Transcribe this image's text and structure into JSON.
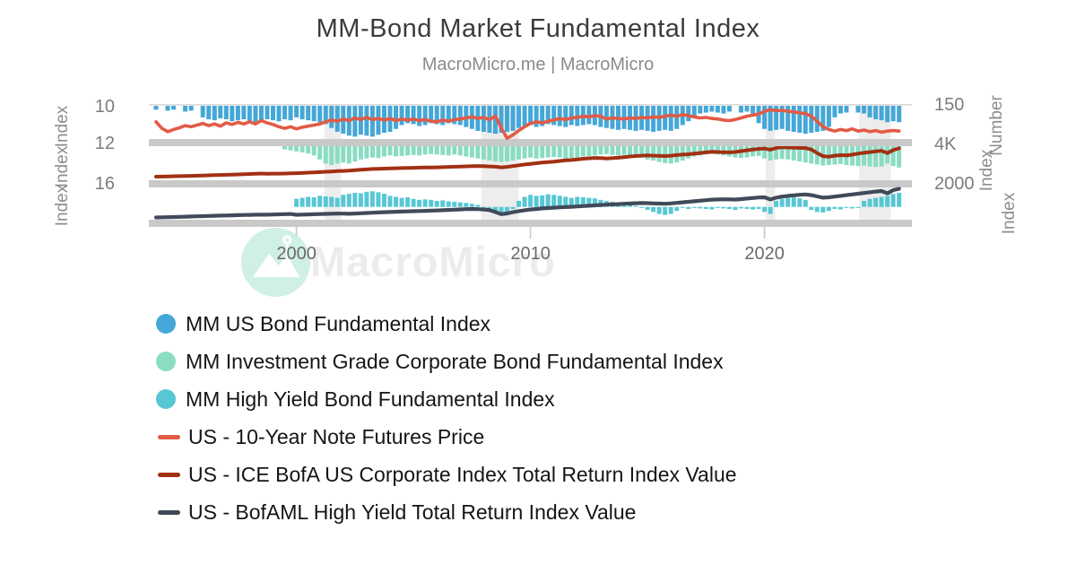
{
  "header": {
    "title": "MM-Bond Market Fundamental Index",
    "subtitle": "MacroMicro.me | MacroMicro"
  },
  "watermark": {
    "text": "MacroMicro",
    "logo": "macromicro-mountain-flag-logo"
  },
  "colors": {
    "bar_blue": "#45a7d8",
    "bar_teal": "#8adcc3",
    "bar_cyan": "#58c7d4",
    "line_red": "#e25b45",
    "line_dark_red": "#a23012",
    "line_navy": "#404a59",
    "grid_band": "#c9c9c9",
    "grid_top_line": "#d9d9d9",
    "recession_shade": "#ededed",
    "tick_text": "#7c7c7c",
    "axis_title_text": "#8d8d8d",
    "x_label_text": "#6b6b6b",
    "watermark_circle": "#ccefe4"
  },
  "legend": {
    "items": [
      {
        "marker": "circle",
        "color": "#45a7d8",
        "label": "MM US Bond Fundamental Index"
      },
      {
        "marker": "circle",
        "color": "#8adcc3",
        "label": "MM Investment Grade Corporate Bond Fundamental Index"
      },
      {
        "marker": "circle",
        "color": "#58c7d4",
        "label": "MM High Yield Bond Fundamental Index"
      },
      {
        "marker": "line",
        "color": "#e25b45",
        "label": "US - 10-Year Note Futures Price"
      },
      {
        "marker": "line",
        "color": "#a23012",
        "label": "US - ICE BofA US Corporate Index Total Return Index Value"
      },
      {
        "marker": "line",
        "color": "#404a59",
        "label": "US - BofAML High Yield Total Return Index Value"
      }
    ]
  },
  "chart_data": {
    "type": "mixed-bar-line",
    "title": "MM-Bond Market Fundamental Index",
    "x_start": 1994.0,
    "x_step": 0.25,
    "x_axis": {
      "range": [
        1994,
        2026.3
      ],
      "ticks": [
        2000,
        2010,
        2020
      ],
      "tick_labels": [
        "2000",
        "2010",
        "2020"
      ]
    },
    "recession_bands": [
      [
        2001.2,
        2001.9
      ],
      [
        2007.9,
        2009.5
      ],
      [
        2020.05,
        2020.45
      ],
      [
        2024.05,
        2025.4
      ]
    ],
    "panels": [
      {
        "name": "us-bond-panel",
        "left_axis_title": "Index",
        "right_axis_title": "Number",
        "left_tick_label": "10",
        "right_tick_label": "150",
        "left_range": [
          10,
          11.77
        ],
        "right_range": [
          150,
          88
        ],
        "bar_series": {
          "name": "MM US Bond Fundamental Index",
          "color": "#45a7d8",
          "baseline": 10,
          "values": [
            10.2,
            null,
            10.25,
            10.2,
            null,
            10.3,
            10.25,
            null,
            10.6,
            10.7,
            10.75,
            10.65,
            10.7,
            10.8,
            10.75,
            10.7,
            10.8,
            10.85,
            10.75,
            10.7,
            10.75,
            10.8,
            10.7,
            10.75,
            10.6,
            10.7,
            10.75,
            10.8,
            10.85,
            10.95,
            11.15,
            11.35,
            11.45,
            11.55,
            11.6,
            11.5,
            11.55,
            11.6,
            11.5,
            11.4,
            11.35,
            11.2,
            11.0,
            10.9,
            10.95,
            11.05,
            11.0,
            10.9,
            10.95,
            11.0,
            10.9,
            10.95,
            11.0,
            11.1,
            11.2,
            11.3,
            11.35,
            11.4,
            11.45,
            11.4,
            11.35,
            11.3,
            11.15,
            11.05,
            11.0,
            11.1,
            11.05,
            10.95,
            11.0,
            11.05,
            11.1,
            11.0,
            11.05,
            11.0,
            10.95,
            11.0,
            11.1,
            11.15,
            11.2,
            11.25,
            11.2,
            11.25,
            11.3,
            11.25,
            11.3,
            11.35,
            11.3,
            11.25,
            11.3,
            11.2,
            11.0,
            10.8,
            10.5,
            10.4,
            10.35,
            10.3,
            10.35,
            10.4,
            10.3,
            null,
            10.35,
            10.3,
            10.4,
            10.9,
            11.2,
            11.3,
            11.25,
            11.2,
            11.3,
            11.35,
            11.4,
            11.45,
            11.4,
            11.35,
            11.3,
            11.1,
            10.6,
            10.4,
            10.35,
            null,
            10.35,
            10.4,
            10.6,
            10.7,
            10.75,
            10.85,
            10.8,
            10.85
          ]
        },
        "line_series": {
          "name": "US - 10-Year Note Futures Price",
          "color": "#e25b45",
          "values": [
            121,
            109,
            103,
            107,
            110,
            114,
            112,
            115,
            118,
            114,
            117,
            113,
            119,
            116,
            120,
            117,
            121,
            117,
            123,
            119,
            116,
            112,
            109,
            112,
            108,
            111,
            113,
            115,
            117,
            121,
            124,
            122,
            126,
            123,
            128,
            125,
            129,
            125,
            127,
            124,
            127,
            123,
            126,
            124,
            126,
            123,
            125,
            122,
            121,
            124,
            122,
            125,
            126,
            128,
            130,
            127,
            129,
            125,
            131,
            110,
            91,
            97,
            105,
            112,
            118,
            121,
            119,
            122,
            124,
            127,
            125,
            128,
            129,
            131,
            130,
            132,
            131,
            126,
            128,
            127,
            126,
            128,
            127,
            129,
            128,
            130,
            129,
            131,
            133,
            131,
            134,
            132,
            130,
            128,
            129,
            127,
            126,
            124,
            123,
            125,
            128,
            131,
            133,
            135,
            140,
            143,
            141,
            142,
            140,
            139,
            137,
            136,
            131,
            122,
            112,
            107,
            104,
            107,
            105,
            108,
            104,
            106,
            103,
            105,
            102,
            104,
            105,
            104
          ]
        }
      },
      {
        "name": "ig-corporate-panel",
        "left_axis_title": "Index",
        "right_axis_title": "Index",
        "left_tick_label": "12",
        "right_tick_label": "4K",
        "left_range": [
          12,
          15.56
        ],
        "right_range": [
          4000,
          500
        ],
        "bar_series": {
          "name": "MM Investment Grade Corporate Bond Fundamental Index",
          "color": "#8adcc3",
          "baseline": 12,
          "values": [
            null,
            null,
            null,
            null,
            null,
            null,
            null,
            null,
            null,
            null,
            null,
            null,
            null,
            null,
            null,
            null,
            null,
            null,
            null,
            null,
            null,
            null,
            12.5,
            12.6,
            12.7,
            12.8,
            12.9,
            13.1,
            13.5,
            13.9,
            14.05,
            13.9,
            13.8,
            13.9,
            13.7,
            13.5,
            13.4,
            13.3,
            13.35,
            13.2,
            13.1,
            13.2,
            13.15,
            13.1,
            13.05,
            13.1,
            13.0,
            12.95,
            13.0,
            13.05,
            13.1,
            13.0,
            13.1,
            13.2,
            13.3,
            13.4,
            13.5,
            13.6,
            13.7,
            13.75,
            13.7,
            13.6,
            13.5,
            13.4,
            13.3,
            13.4,
            13.35,
            13.3,
            13.25,
            13.3,
            13.4,
            13.35,
            13.3,
            13.2,
            13.15,
            13.1,
            13.0,
            12.95,
            13.05,
            13.1,
            13.05,
            13.1,
            13.2,
            13.3,
            13.5,
            13.6,
            13.75,
            13.85,
            13.9,
            13.8,
            13.6,
            13.4,
            13.2,
            13.1,
            13.0,
            12.95,
            13.0,
            13.1,
            13.2,
            13.3,
            13.35,
            13.3,
            13.2,
            13.15,
            13.4,
            13.6,
            13.5,
            13.45,
            13.5,
            13.6,
            13.7,
            13.8,
            13.9,
            14.0,
            14.1,
            14.05,
            14.0,
            13.95,
            14.05,
            14.1,
            14.15,
            14.1,
            14.2,
            14.25,
            14.2,
            13.9,
            14.15,
            14.3
          ]
        },
        "line_series": {
          "name": "US - ICE BofA US Corporate Index Total Return Index Value",
          "color": "#a23012",
          "values": [
            850,
            860,
            875,
            890,
            900,
            915,
            930,
            945,
            960,
            980,
            1000,
            1015,
            1030,
            1050,
            1070,
            1090,
            1110,
            1135,
            1155,
            1140,
            1150,
            1145,
            1160,
            1175,
            1190,
            1210,
            1240,
            1270,
            1300,
            1330,
            1360,
            1390,
            1410,
            1440,
            1480,
            1520,
            1560,
            1600,
            1620,
            1640,
            1660,
            1670,
            1690,
            1710,
            1720,
            1730,
            1740,
            1750,
            1760,
            1780,
            1800,
            1820,
            1840,
            1860,
            1880,
            1890,
            1880,
            1850,
            1820,
            1760,
            1800,
            1880,
            1960,
            2040,
            2100,
            2160,
            2220,
            2280,
            2320,
            2380,
            2440,
            2480,
            2540,
            2600,
            2640,
            2680,
            2660,
            2620,
            2660,
            2700,
            2760,
            2820,
            2860,
            2900,
            2920,
            2900,
            2880,
            2860,
            2900,
            2960,
            3000,
            3040,
            3100,
            3160,
            3220,
            3280,
            3260,
            3240,
            3220,
            3260,
            3340,
            3420,
            3500,
            3560,
            3600,
            3480,
            3650,
            3720,
            3700,
            3680,
            3660,
            3640,
            3500,
            3150,
            2850,
            2800,
            2900,
            2950,
            2920,
            3000,
            3100,
            3180,
            3250,
            3320,
            3380,
            3150,
            3450,
            3620
          ]
        }
      },
      {
        "name": "high-yield-panel",
        "left_axis_title": "Index",
        "right_axis_title": "Index",
        "left_tick_label": "16",
        "right_tick_label": "2000",
        "left_range": [
          16,
          19.56
        ],
        "right_range": [
          2000,
          0
        ],
        "bar_series": {
          "name": "MM High Yield Bond Fundamental Index",
          "color": "#58c7d4",
          "baseline": 18.2,
          "values": [
            null,
            null,
            null,
            null,
            null,
            null,
            null,
            null,
            null,
            null,
            null,
            null,
            null,
            null,
            null,
            null,
            null,
            null,
            null,
            null,
            null,
            null,
            null,
            null,
            17.4,
            17.3,
            17.2,
            17.25,
            17.1,
            17.15,
            17.2,
            17.3,
            17.0,
            16.9,
            16.8,
            16.85,
            16.7,
            16.65,
            16.75,
            16.9,
            17.1,
            17.2,
            17.3,
            17.25,
            17.4,
            17.5,
            17.45,
            17.5,
            17.6,
            17.55,
            17.65,
            17.7,
            17.75,
            17.8,
            17.9,
            18.0,
            18.5,
            18.7,
            18.85,
            18.9,
            18.8,
            18.4,
            17.6,
            17.2,
            17.0,
            17.1,
            17.05,
            16.95,
            17.0,
            17.1,
            17.2,
            17.3,
            17.2,
            17.25,
            17.3,
            17.35,
            17.5,
            17.6,
            17.7,
            17.8,
            17.9,
            18.0,
            18.1,
            18.3,
            18.5,
            18.7,
            18.9,
            19.0,
            18.9,
            18.6,
            18.3,
            18.4,
            18.3,
            18.35,
            18.4,
            18.45,
            18.3,
            18.35,
            18.4,
            18.5,
            18.35,
            18.4,
            18.45,
            18.4,
            18.7,
            18.9,
            17.6,
            17.4,
            17.3,
            17.25,
            17.35,
            17.5,
            18.5,
            18.7,
            18.75,
            18.6,
            18.4,
            18.45,
            18.3,
            18.35,
            18.3,
            17.6,
            17.4,
            17.3,
            17.2,
            17.1,
            16.9,
            16.8
          ]
        },
        "line_series": {
          "name": "US - BofAML High Yield Total Return Index Value",
          "color": "#404a59",
          "values": [
            175,
            185,
            190,
            200,
            210,
            220,
            230,
            240,
            250,
            260,
            270,
            280,
            285,
            295,
            305,
            315,
            320,
            330,
            335,
            330,
            340,
            350,
            360,
            370,
            325,
            335,
            345,
            355,
            365,
            375,
            385,
            395,
            390,
            380,
            395,
            410,
            425,
            440,
            455,
            470,
            480,
            495,
            505,
            515,
            525,
            535,
            545,
            555,
            565,
            580,
            595,
            610,
            625,
            640,
            650,
            640,
            620,
            590,
            480,
            360,
            400,
            470,
            530,
            580,
            620,
            650,
            680,
            700,
            720,
            740,
            755,
            770,
            790,
            810,
            830,
            850,
            870,
            890,
            905,
            920,
            940,
            955,
            970,
            980,
            975,
            960,
            950,
            940,
            960,
            990,
            1020,
            1050,
            1080,
            1110,
            1140,
            1170,
            1180,
            1190,
            1185,
            1175,
            1200,
            1230,
            1260,
            1290,
            1300,
            1180,
            1280,
            1340,
            1380,
            1410,
            1440,
            1460,
            1420,
            1350,
            1280,
            1300,
            1340,
            1380,
            1420,
            1460,
            1500,
            1540,
            1580,
            1620,
            1650,
            1520,
            1700,
            1780
          ]
        }
      }
    ]
  }
}
